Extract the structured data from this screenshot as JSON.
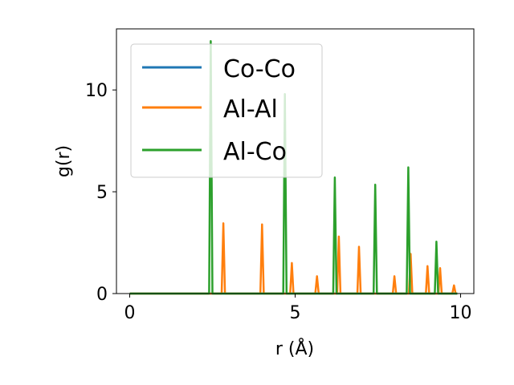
{
  "chart_data": {
    "type": "line",
    "xlabel": "r (Å)",
    "ylabel": "g(r)",
    "xlim": [
      -0.4,
      10.4
    ],
    "ylim": [
      0,
      13
    ],
    "xticks": [
      0,
      5,
      10
    ],
    "yticks": [
      0,
      5,
      10
    ],
    "grid": false,
    "legend_position": "upper-left",
    "series": [
      {
        "name": "Co-Co",
        "color": "#1f77b4",
        "peaks": []
      },
      {
        "name": "Al-Al",
        "color": "#ff7f0e",
        "peaks": [
          [
            2.83,
            3.45
          ],
          [
            4.0,
            3.4
          ],
          [
            4.9,
            1.5
          ],
          [
            5.66,
            0.85
          ],
          [
            6.32,
            2.8
          ],
          [
            6.93,
            2.3
          ],
          [
            8.0,
            0.85
          ],
          [
            8.49,
            1.95
          ],
          [
            9.0,
            1.35
          ],
          [
            9.38,
            1.25
          ],
          [
            9.8,
            0.4
          ]
        ]
      },
      {
        "name": "Al-Co",
        "color": "#2ca02c",
        "peaks": [
          [
            2.45,
            12.4
          ],
          [
            4.69,
            9.8
          ],
          [
            6.2,
            5.7
          ],
          [
            7.42,
            5.35
          ],
          [
            8.42,
            6.2
          ],
          [
            9.27,
            2.55
          ]
        ]
      }
    ]
  }
}
